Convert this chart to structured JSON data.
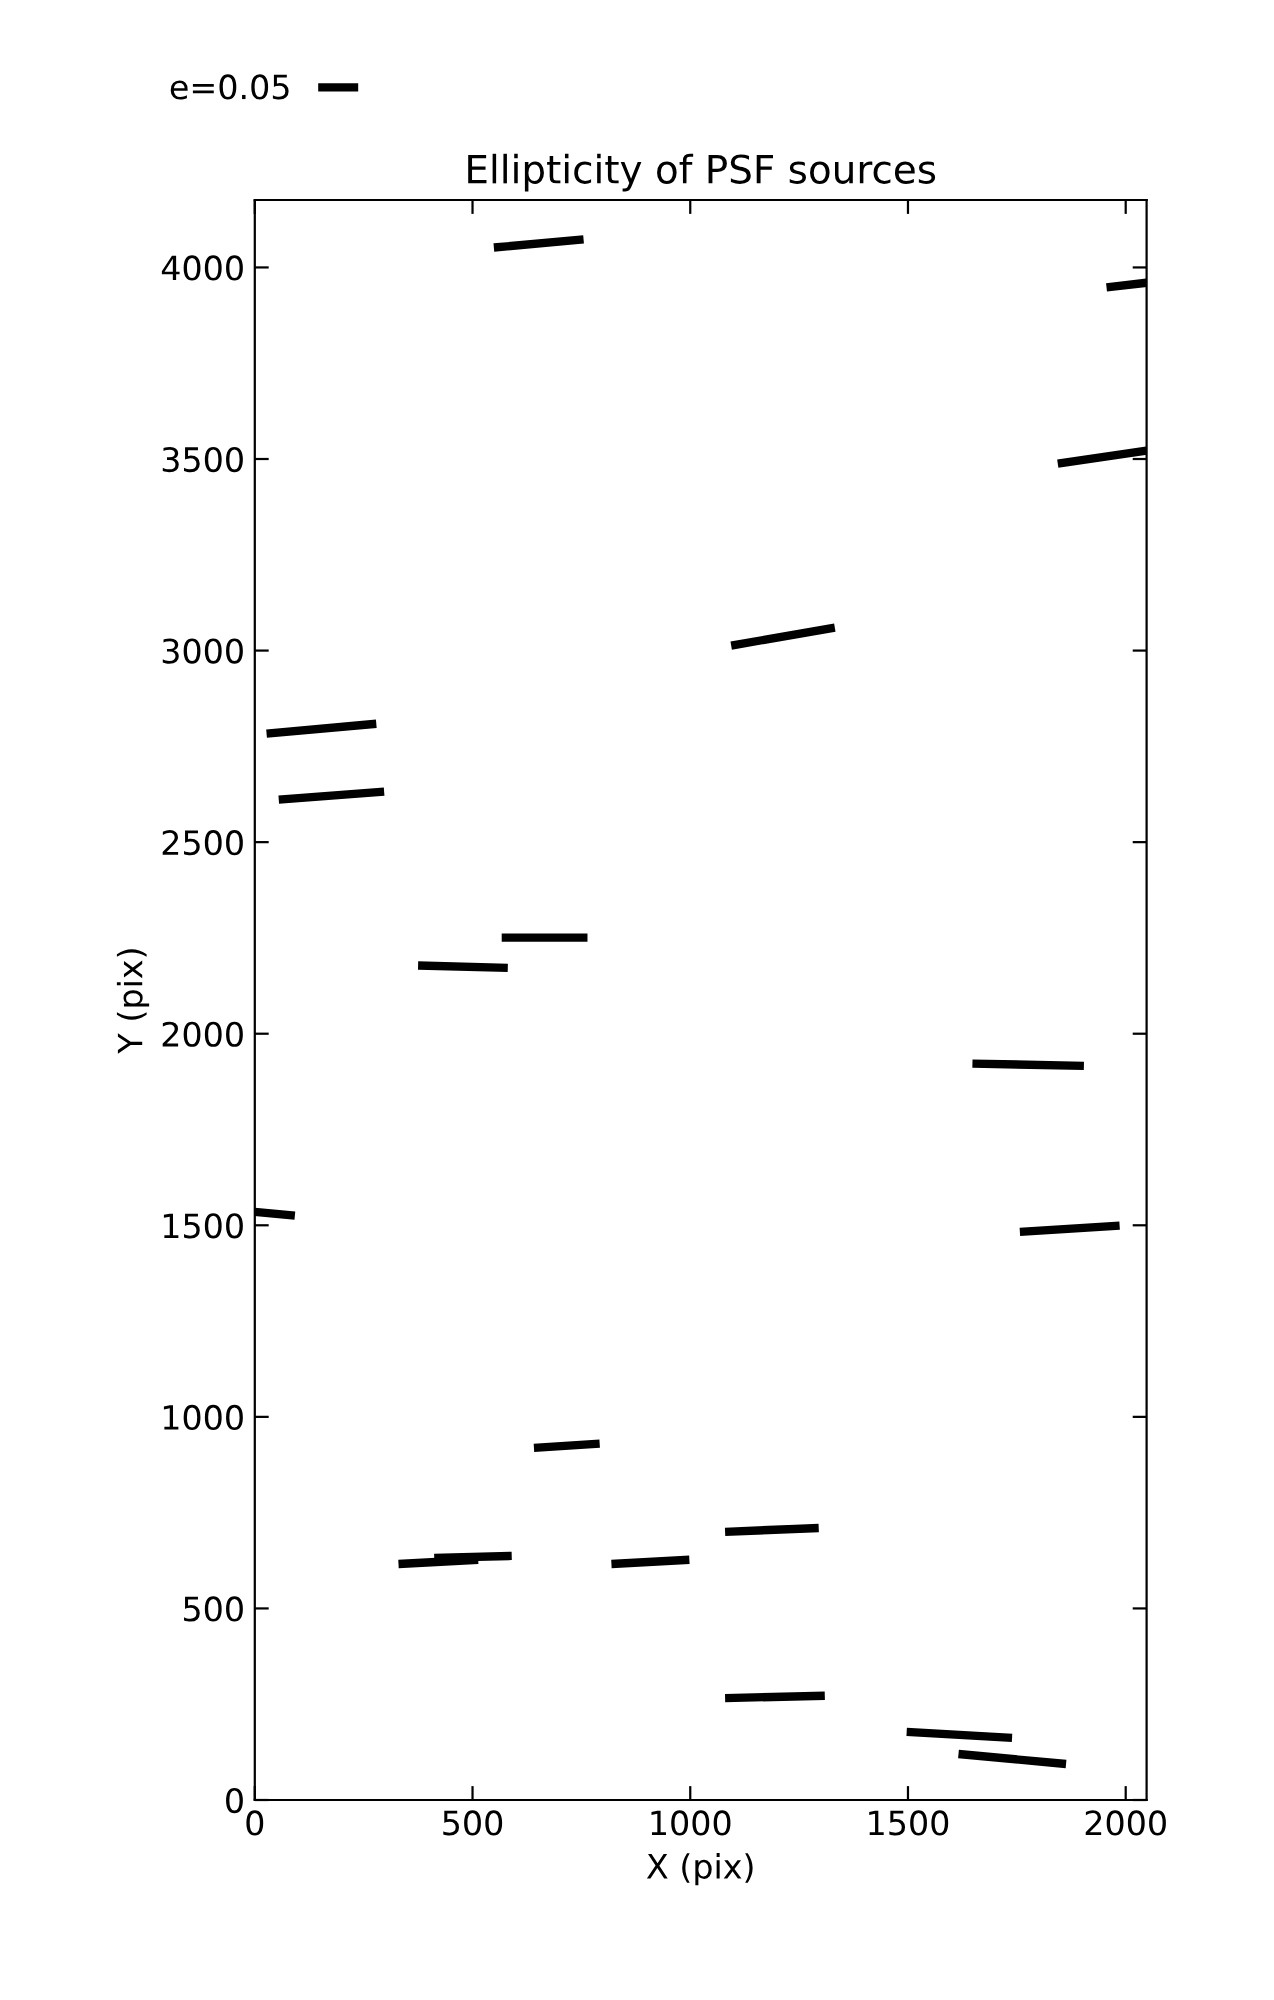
{
  "chart_data": {
    "type": "line",
    "title": "Ellipticity of PSF sources",
    "xlabel": "X (pix)",
    "ylabel": "Y (pix)",
    "xlim": [
      0,
      2048
    ],
    "ylim": [
      0,
      4176
    ],
    "xticks": [
      0,
      500,
      1000,
      1500,
      2000
    ],
    "yticks": [
      0,
      500,
      1000,
      1500,
      2000,
      2500,
      3000,
      3500,
      4000
    ],
    "legend": "top left",
    "line_style": "solid",
    "series": [
      {
        "name": "e=0.05",
        "color": "#000000",
        "x": [
          549,
          755
        ],
        "values": [
          4052,
          4073
        ]
      },
      {
        "color": "#000000",
        "x": [
          1956,
          2048
        ],
        "values": [
          3948,
          3960
        ]
      },
      {
        "color": "#000000",
        "x": [
          1844,
          2048
        ],
        "values": [
          3488,
          3522
        ]
      },
      {
        "color": "#000000",
        "x": [
          1094,
          1332
        ],
        "values": [
          3013,
          3060
        ]
      },
      {
        "color": "#000000",
        "x": [
          27,
          279
        ],
        "values": [
          2783,
          2809
        ]
      },
      {
        "color": "#000000",
        "x": [
          55,
          297
        ],
        "values": [
          2611,
          2632
        ]
      },
      {
        "color": "#000000",
        "x": [
          567,
          764
        ],
        "values": [
          2251,
          2251
        ]
      },
      {
        "color": "#000000",
        "x": [
          375,
          581
        ],
        "values": [
          2178,
          2172
        ]
      },
      {
        "color": "#000000",
        "x": [
          1648,
          1904
        ],
        "values": [
          1922,
          1916
        ]
      },
      {
        "color": "#000000",
        "x": [
          0,
          92
        ],
        "values": [
          1535,
          1525
        ]
      },
      {
        "color": "#000000",
        "x": [
          1757,
          1986
        ],
        "values": [
          1483,
          1499
        ]
      },
      {
        "color": "#000000",
        "x": [
          641,
          792
        ],
        "values": [
          919,
          930
        ]
      },
      {
        "color": "#000000",
        "x": [
          330,
          513
        ],
        "values": [
          616,
          627
        ]
      },
      {
        "color": "#000000",
        "x": [
          412,
          590
        ],
        "values": [
          632,
          637
        ]
      },
      {
        "color": "#000000",
        "x": [
          819,
          998
        ],
        "values": [
          616,
          627
        ]
      },
      {
        "color": "#000000",
        "x": [
          1080,
          1295
        ],
        "values": [
          700,
          710
        ]
      },
      {
        "color": "#000000",
        "x": [
          1080,
          1309
        ],
        "values": [
          266,
          272
        ]
      },
      {
        "color": "#000000",
        "x": [
          1497,
          1739
        ],
        "values": [
          178,
          162
        ]
      },
      {
        "color": "#000000",
        "x": [
          1616,
          1863
        ],
        "values": [
          120,
          94
        ]
      }
    ]
  }
}
